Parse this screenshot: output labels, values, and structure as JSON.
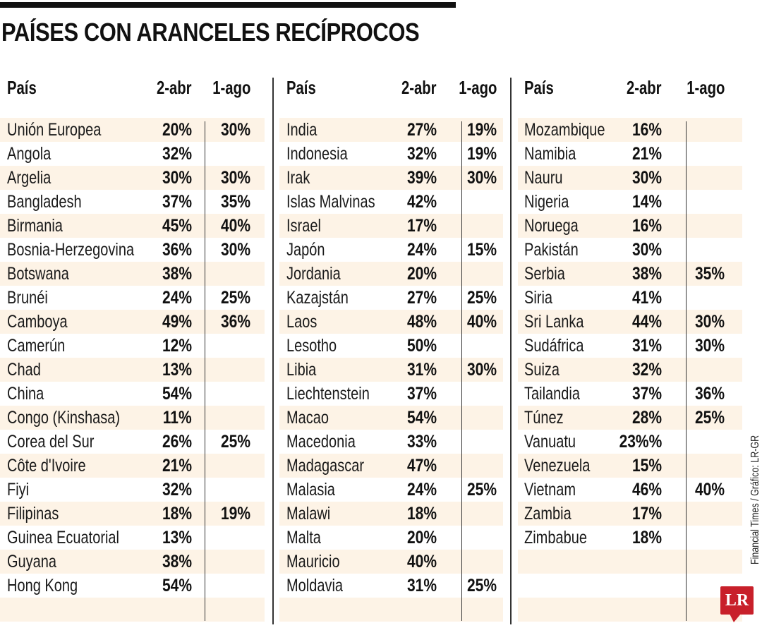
{
  "title": "PAÍSES CON ARANCELES RECÍPROCOS",
  "headers": {
    "country": "País",
    "apr": "2-abr",
    "aug": "1-ago"
  },
  "source": "Financial Times / Gráfico: LR-GR",
  "logo": "LR",
  "colors": {
    "stripe": "#fdf3e6",
    "logo_red": "#c8202a",
    "text": "#111111"
  },
  "panels": [
    {
      "rows": [
        {
          "country": "Unión Europea",
          "apr": "20%",
          "aug": "30%"
        },
        {
          "country": "Angola",
          "apr": "32%",
          "aug": ""
        },
        {
          "country": "Argelia",
          "apr": "30%",
          "aug": "30%"
        },
        {
          "country": "Bangladesh",
          "apr": "37%",
          "aug": "35%"
        },
        {
          "country": "Birmania",
          "apr": "45%",
          "aug": "40%"
        },
        {
          "country": "Bosnia-Herzegovina",
          "apr": "36%",
          "aug": "30%"
        },
        {
          "country": "Botswana",
          "apr": "38%",
          "aug": ""
        },
        {
          "country": "Brunéi",
          "apr": "24%",
          "aug": "25%"
        },
        {
          "country": "Camboya",
          "apr": "49%",
          "aug": "36%"
        },
        {
          "country": "Camerún",
          "apr": "12%",
          "aug": ""
        },
        {
          "country": "Chad",
          "apr": "13%",
          "aug": ""
        },
        {
          "country": "China",
          "apr": "54%",
          "aug": ""
        },
        {
          "country": "Congo (Kinshasa)",
          "apr": "11%",
          "aug": ""
        },
        {
          "country": "Corea del Sur",
          "apr": "26%",
          "aug": "25%"
        },
        {
          "country": "Côte d'Ivoire",
          "apr": "21%",
          "aug": ""
        },
        {
          "country": "Fiyi",
          "apr": "32%",
          "aug": ""
        },
        {
          "country": "Filipinas",
          "apr": "18%",
          "aug": "19%"
        },
        {
          "country": "Guinea Ecuatorial",
          "apr": "13%",
          "aug": ""
        },
        {
          "country": "Guyana",
          "apr": "38%",
          "aug": ""
        },
        {
          "country": "Hong Kong",
          "apr": "54%",
          "aug": ""
        },
        {
          "country": "",
          "apr": "",
          "aug": ""
        }
      ]
    },
    {
      "rows": [
        {
          "country": "India",
          "apr": "27%",
          "aug": "19%"
        },
        {
          "country": "Indonesia",
          "apr": "32%",
          "aug": "19%"
        },
        {
          "country": "Irak",
          "apr": "39%",
          "aug": "30%"
        },
        {
          "country": "Islas Malvinas",
          "apr": "42%",
          "aug": ""
        },
        {
          "country": "Israel",
          "apr": "17%",
          "aug": ""
        },
        {
          "country": "Japón",
          "apr": "24%",
          "aug": "15%"
        },
        {
          "country": "Jordania",
          "apr": "20%",
          "aug": ""
        },
        {
          "country": "Kazajstán",
          "apr": "27%",
          "aug": "25%"
        },
        {
          "country": "Laos",
          "apr": "48%",
          "aug": "40%"
        },
        {
          "country": "Lesotho",
          "apr": "50%",
          "aug": ""
        },
        {
          "country": "Libia",
          "apr": "31%",
          "aug": "30%"
        },
        {
          "country": "Liechtenstein",
          "apr": "37%",
          "aug": ""
        },
        {
          "country": "Macao",
          "apr": "54%",
          "aug": ""
        },
        {
          "country": "Macedonia",
          "apr": "33%",
          "aug": ""
        },
        {
          "country": "Madagascar",
          "apr": "47%",
          "aug": ""
        },
        {
          "country": "Malasia",
          "apr": "24%",
          "aug": "25%"
        },
        {
          "country": "Malawi",
          "apr": "18%",
          "aug": ""
        },
        {
          "country": "Malta",
          "apr": "20%",
          "aug": ""
        },
        {
          "country": "Mauricio",
          "apr": "40%",
          "aug": ""
        },
        {
          "country": "Moldavia",
          "apr": "31%",
          "aug": "25%"
        },
        {
          "country": "",
          "apr": "",
          "aug": ""
        }
      ]
    },
    {
      "rows": [
        {
          "country": "Mozambique",
          "apr": "16%",
          "aug": ""
        },
        {
          "country": "Namibia",
          "apr": "21%",
          "aug": ""
        },
        {
          "country": "Nauru",
          "apr": "30%",
          "aug": ""
        },
        {
          "country": "Nigeria",
          "apr": "14%",
          "aug": ""
        },
        {
          "country": "Noruega",
          "apr": "16%",
          "aug": ""
        },
        {
          "country": "Pakistán",
          "apr": "30%",
          "aug": ""
        },
        {
          "country": "Serbia",
          "apr": "38%",
          "aug": "35%"
        },
        {
          "country": "Siria",
          "apr": "41%",
          "aug": ""
        },
        {
          "country": "Sri Lanka",
          "apr": "44%",
          "aug": "30%"
        },
        {
          "country": "Sudáfrica",
          "apr": "31%",
          "aug": "30%"
        },
        {
          "country": "Suiza",
          "apr": "32%",
          "aug": ""
        },
        {
          "country": "Tailandia",
          "apr": "37%",
          "aug": "36%"
        },
        {
          "country": "Túnez",
          "apr": "28%",
          "aug": "25%"
        },
        {
          "country": "Vanuatu",
          "apr": "23%%",
          "aug": ""
        },
        {
          "country": "Venezuela",
          "apr": "15%",
          "aug": ""
        },
        {
          "country": "Vietnam",
          "apr": "46%",
          "aug": "40%"
        },
        {
          "country": "Zambia",
          "apr": "17%",
          "aug": ""
        },
        {
          "country": "Zimbabue",
          "apr": "18%",
          "aug": ""
        },
        {
          "country": "",
          "apr": "",
          "aug": ""
        },
        {
          "country": "",
          "apr": "",
          "aug": ""
        },
        {
          "country": "",
          "apr": "",
          "aug": ""
        }
      ]
    }
  ]
}
